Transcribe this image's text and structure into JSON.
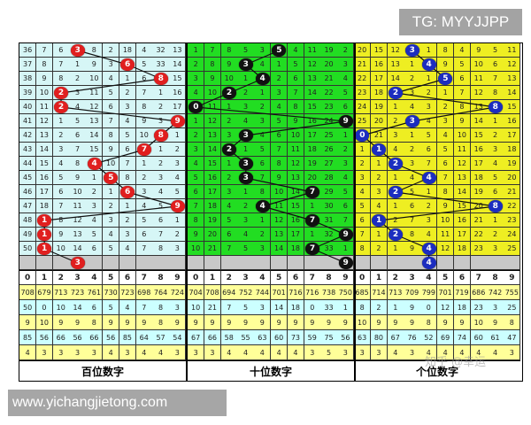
{
  "overlay_tag": "TG: MYYJJPP",
  "site": "www.yichangjietong.com",
  "watermark": "知乎 @幸运",
  "digits": [
    "0",
    "1",
    "2",
    "3",
    "4",
    "5",
    "6",
    "7",
    "8",
    "9"
  ],
  "sections": [
    {
      "label": "百位数字",
      "grid_color": "#d6f6f6",
      "ball_color": "#e01f1f",
      "rows": [
        [
          36,
          7,
          6,
          3,
          8,
          2,
          18,
          4,
          32,
          13
        ],
        [
          37,
          8,
          7,
          1,
          9,
          3,
          6,
          5,
          33,
          14
        ],
        [
          38,
          9,
          8,
          2,
          10,
          4,
          1,
          6,
          8,
          15
        ],
        [
          39,
          10,
          2,
          3,
          11,
          5,
          2,
          7,
          1,
          16
        ],
        [
          40,
          11,
          2,
          4,
          12,
          6,
          3,
          8,
          2,
          17
        ],
        [
          41,
          12,
          1,
          5,
          13,
          7,
          4,
          9,
          3,
          9
        ],
        [
          42,
          13,
          2,
          6,
          14,
          8,
          5,
          10,
          8,
          1
        ],
        [
          43,
          14,
          3,
          7,
          15,
          9,
          6,
          7,
          1,
          2
        ],
        [
          44,
          15,
          4,
          8,
          4,
          10,
          7,
          1,
          2,
          3
        ],
        [
          45,
          16,
          5,
          9,
          1,
          5,
          8,
          2,
          3,
          4
        ],
        [
          46,
          17,
          6,
          10,
          2,
          1,
          6,
          3,
          4,
          5
        ],
        [
          47,
          18,
          7,
          11,
          3,
          2,
          1,
          4,
          5,
          9
        ],
        [
          48,
          1,
          8,
          12,
          4,
          3,
          2,
          5,
          6,
          1
        ],
        [
          49,
          1,
          9,
          13,
          5,
          4,
          3,
          6,
          7,
          2
        ],
        [
          50,
          1,
          10,
          14,
          6,
          5,
          4,
          7,
          8,
          3
        ]
      ],
      "hits": [
        3,
        6,
        8,
        2,
        2,
        9,
        8,
        7,
        4,
        5,
        6,
        9,
        1,
        1,
        1
      ],
      "next_hit": 3,
      "stats": [
        [
          708,
          679,
          713,
          723,
          761,
          730,
          723,
          698,
          764,
          724
        ],
        [
          50,
          0,
          10,
          14,
          6,
          5,
          4,
          7,
          8,
          3
        ],
        [
          9,
          10,
          9,
          9,
          8,
          9,
          9,
          9,
          8,
          9
        ],
        [
          85,
          56,
          66,
          56,
          66,
          56,
          85,
          64,
          57,
          54
        ],
        [
          4,
          3,
          3,
          3,
          3,
          4,
          3,
          4,
          4,
          3
        ]
      ]
    },
    {
      "label": "十位数字",
      "grid_color": "#22dd22",
      "ball_color": "#111111",
      "rows": [
        [
          1,
          7,
          8,
          5,
          3,
          5,
          4,
          11,
          19,
          2
        ],
        [
          2,
          8,
          9,
          3,
          4,
          1,
          5,
          12,
          20,
          3
        ],
        [
          3,
          9,
          10,
          1,
          4,
          2,
          6,
          13,
          21,
          4
        ],
        [
          4,
          10,
          2,
          2,
          1,
          3,
          7,
          14,
          22,
          5
        ],
        [
          0,
          11,
          1,
          3,
          2,
          4,
          8,
          15,
          23,
          6
        ],
        [
          1,
          12,
          2,
          4,
          3,
          5,
          9,
          16,
          24,
          9
        ],
        [
          2,
          13,
          3,
          3,
          4,
          6,
          10,
          17,
          25,
          1
        ],
        [
          3,
          14,
          2,
          1,
          5,
          7,
          11,
          18,
          26,
          2
        ],
        [
          4,
          15,
          1,
          3,
          6,
          8,
          12,
          19,
          27,
          3
        ],
        [
          5,
          16,
          2,
          3,
          7,
          9,
          13,
          20,
          28,
          4
        ],
        [
          6,
          17,
          3,
          1,
          8,
          10,
          14,
          7,
          29,
          5
        ],
        [
          7,
          18,
          4,
          2,
          4,
          11,
          15,
          1,
          30,
          6
        ],
        [
          8,
          19,
          5,
          3,
          1,
          12,
          16,
          7,
          31,
          7
        ],
        [
          9,
          20,
          6,
          4,
          2,
          13,
          17,
          1,
          32,
          9
        ],
        [
          10,
          21,
          7,
          5,
          3,
          14,
          18,
          7,
          33,
          1
        ]
      ],
      "hits": [
        5,
        3,
        4,
        2,
        0,
        9,
        3,
        2,
        3,
        3,
        7,
        4,
        7,
        9,
        7
      ],
      "next_hit": 9,
      "stats": [
        [
          704,
          708,
          694,
          752,
          744,
          701,
          716,
          716,
          738,
          750
        ],
        [
          10,
          21,
          7,
          5,
          3,
          14,
          18,
          0,
          33,
          1
        ],
        [
          9,
          9,
          9,
          9,
          9,
          9,
          9,
          9,
          9,
          9
        ],
        [
          67,
          66,
          58,
          55,
          63,
          60,
          73,
          59,
          75,
          56
        ],
        [
          3,
          3,
          4,
          4,
          4,
          4,
          4,
          3,
          5,
          3
        ]
      ]
    },
    {
      "label": "个位数字",
      "grid_color": "#eeee22",
      "ball_color": "#1c2dbf",
      "rows": [
        [
          20,
          15,
          12,
          3,
          1,
          8,
          4,
          9,
          5,
          11
        ],
        [
          21,
          16,
          13,
          1,
          4,
          9,
          5,
          10,
          6,
          12
        ],
        [
          22,
          17,
          14,
          2,
          1,
          5,
          6,
          11,
          7,
          13
        ],
        [
          23,
          18,
          2,
          3,
          2,
          1,
          7,
          12,
          8,
          14
        ],
        [
          24,
          19,
          1,
          4,
          3,
          2,
          8,
          13,
          8,
          15
        ],
        [
          25,
          20,
          2,
          3,
          4,
          3,
          9,
          14,
          1,
          16
        ],
        [
          0,
          21,
          3,
          1,
          5,
          4,
          10,
          15,
          2,
          17
        ],
        [
          1,
          1,
          4,
          2,
          6,
          5,
          11,
          16,
          3,
          18
        ],
        [
          2,
          1,
          2,
          3,
          7,
          6,
          12,
          17,
          4,
          19
        ],
        [
          3,
          2,
          1,
          4,
          4,
          7,
          13,
          18,
          5,
          20
        ],
        [
          4,
          3,
          2,
          5,
          1,
          8,
          14,
          19,
          6,
          21
        ],
        [
          5,
          4,
          1,
          6,
          2,
          9,
          15,
          20,
          8,
          22
        ],
        [
          6,
          1,
          2,
          7,
          3,
          10,
          16,
          21,
          1,
          23
        ],
        [
          7,
          1,
          2,
          8,
          4,
          11,
          17,
          22,
          2,
          24
        ],
        [
          8,
          2,
          1,
          9,
          4,
          12,
          18,
          23,
          3,
          25
        ]
      ],
      "hits": [
        3,
        4,
        5,
        2,
        8,
        3,
        0,
        1,
        2,
        4,
        2,
        8,
        1,
        2,
        4
      ],
      "next_hit": 4,
      "stats": [
        [
          685,
          714,
          713,
          709,
          799,
          701,
          719,
          686,
          742,
          755
        ],
        [
          8,
          2,
          1,
          9,
          0,
          12,
          18,
          23,
          3,
          25
        ],
        [
          10,
          9,
          9,
          9,
          8,
          9,
          9,
          10,
          9,
          8
        ],
        [
          63,
          80,
          67,
          76,
          52,
          69,
          74,
          60,
          61,
          47
        ],
        [
          3,
          3,
          4,
          3,
          4,
          4,
          4,
          4,
          4,
          3
        ]
      ]
    }
  ],
  "stat_row_colors": [
    "#ffff99",
    "#ccffff",
    "#ffff99",
    "#ccffff",
    "#ffff99"
  ]
}
